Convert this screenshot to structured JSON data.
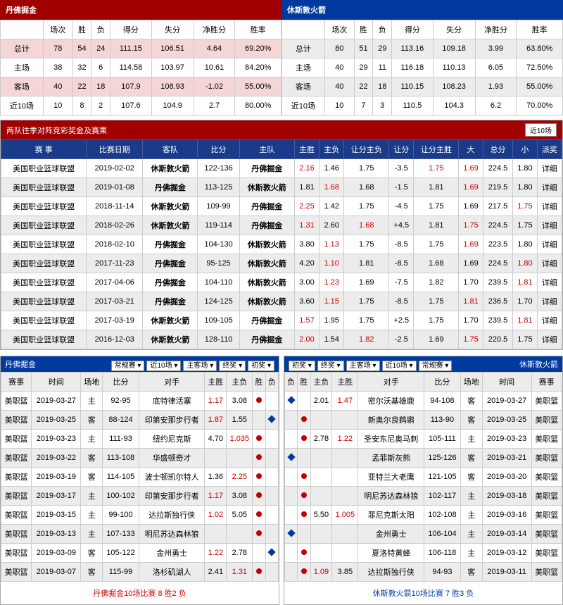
{
  "teamA": "丹佛掘金",
  "teamB": "休斯敦火箭",
  "statsHeaders": [
    "",
    "场次",
    "胜",
    "负",
    "得分",
    "失分",
    "净胜分",
    "胜率"
  ],
  "statsA": [
    {
      "label": "总计",
      "v": [
        "78",
        "54",
        "24",
        "111.15",
        "106.51",
        "4.64",
        "69.20%"
      ],
      "cls": "row-pink"
    },
    {
      "label": "主场",
      "v": [
        "38",
        "32",
        "6",
        "114.58",
        "103.97",
        "10.61",
        "84.20%"
      ],
      "cls": ""
    },
    {
      "label": "客场",
      "v": [
        "40",
        "22",
        "18",
        "107.9",
        "108.93",
        "-1.02",
        "55.00%"
      ],
      "cls": "row-pink"
    },
    {
      "label": "近10场",
      "v": [
        "10",
        "8",
        "2",
        "107.6",
        "104.9",
        "2.7",
        "80.00%"
      ],
      "cls": ""
    }
  ],
  "statsB": [
    {
      "label": "总计",
      "v": [
        "80",
        "51",
        "29",
        "113.16",
        "109.18",
        "3.99",
        "63.80%"
      ],
      "cls": "row-gray"
    },
    {
      "label": "主场",
      "v": [
        "40",
        "29",
        "11",
        "116.18",
        "110.13",
        "6.05",
        "72.50%"
      ],
      "cls": ""
    },
    {
      "label": "客场",
      "v": [
        "40",
        "22",
        "18",
        "110.15",
        "108.23",
        "1.93",
        "55.00%"
      ],
      "cls": "row-gray"
    },
    {
      "label": "近10场",
      "v": [
        "10",
        "7",
        "3",
        "110.5",
        "104.3",
        "6.2",
        "70.00%"
      ],
      "cls": ""
    }
  ],
  "h2hTitle": "两队往季对阵竞彩奖金及赛果",
  "h2hBtn": "近10场",
  "h2hHeaders": [
    "赛 事",
    "比赛日期",
    "客队",
    "比分",
    "主队",
    "主胜",
    "主负",
    "让分主负",
    "让分",
    "让分主胜",
    "大",
    "总分",
    "小",
    "派奖"
  ],
  "h2h": [
    {
      "c": [
        "美国职业篮球联盟",
        "2019-02-02",
        "休斯敦火箭",
        "122-136",
        "丹佛掘金",
        "2.16",
        "1.46",
        "1.75",
        "-3.5",
        "1.75",
        "1.69",
        "224.5",
        "1.80",
        "详细"
      ],
      "r": [
        5,
        9,
        10
      ]
    },
    {
      "c": [
        "美国职业篮球联盟",
        "2019-01-08",
        "丹佛掘金",
        "113-125",
        "休斯敦火箭",
        "1.81",
        "1.68",
        "1.68",
        "-1.5",
        "1.81",
        "1.69",
        "219.5",
        "1.80",
        "详细"
      ],
      "r": [
        6,
        10
      ],
      "alt": 1
    },
    {
      "c": [
        "美国职业篮球联盟",
        "2018-11-14",
        "休斯敦火箭",
        "109-99",
        "丹佛掘金",
        "2.25",
        "1.42",
        "1.75",
        "-4.5",
        "1.75",
        "1.69",
        "217.5",
        "1.75",
        "详细"
      ],
      "r": [
        5,
        12
      ]
    },
    {
      "c": [
        "美国职业篮球联盟",
        "2018-02-26",
        "休斯敦火箭",
        "119-114",
        "丹佛掘金",
        "1.31",
        "2.60",
        "1.68",
        "+4.5",
        "1.81",
        "1.75",
        "224.5",
        "1.75",
        "详细"
      ],
      "r": [
        5,
        7,
        10
      ],
      "alt": 1
    },
    {
      "c": [
        "美国职业篮球联盟",
        "2018-02-10",
        "丹佛掘金",
        "104-130",
        "休斯敦火箭",
        "3.80",
        "1.13",
        "1.75",
        "-8.5",
        "1.75",
        "1.69",
        "223.5",
        "1.80",
        "详细"
      ],
      "r": [
        6,
        10
      ]
    },
    {
      "c": [
        "美国职业篮球联盟",
        "2017-11-23",
        "丹佛掘金",
        "95-125",
        "休斯敦火箭",
        "4.20",
        "1.10",
        "1.81",
        "-8.5",
        "1.68",
        "1.69",
        "224.5",
        "1.80",
        "详细"
      ],
      "r": [
        6,
        12
      ],
      "alt": 1
    },
    {
      "c": [
        "美国职业篮球联盟",
        "2017-04-06",
        "丹佛掘金",
        "104-110",
        "休斯敦火箭",
        "3.00",
        "1.23",
        "1.69",
        "-7.5",
        "1.82",
        "1.70",
        "239.5",
        "1.81",
        "详细"
      ],
      "r": [
        6,
        12
      ]
    },
    {
      "c": [
        "美国职业篮球联盟",
        "2017-03-21",
        "丹佛掘金",
        "124-125",
        "休斯敦火箭",
        "3.60",
        "1.15",
        "1.75",
        "-8.5",
        "1.75",
        "1.81",
        "236.5",
        "1.70",
        "详细"
      ],
      "r": [
        6,
        10
      ],
      "alt": 1
    },
    {
      "c": [
        "美国职业篮球联盟",
        "2017-03-19",
        "休斯敦火箭",
        "109-105",
        "丹佛掘金",
        "1.57",
        "1.95",
        "1.75",
        "+2.5",
        "1.75",
        "1.70",
        "239.5",
        "1.81",
        "详细"
      ],
      "r": [
        5,
        12
      ]
    },
    {
      "c": [
        "美国职业篮球联盟",
        "2016-12-03",
        "休斯敦火箭",
        "128-110",
        "丹佛掘金",
        "2.00",
        "1.54",
        "1.82",
        "-2.5",
        "1.69",
        "1.75",
        "220.5",
        "1.75",
        "详细"
      ],
      "r": [
        5,
        7,
        10
      ],
      "alt": 1
    }
  ],
  "recentHeadersA": [
    "赛事",
    "时间",
    "场地",
    "比分",
    "对手",
    "主胜",
    "主负",
    "胜",
    "负"
  ],
  "recentHeadersB": [
    "负",
    "胜",
    "主负",
    "主胜",
    "对手",
    "比分",
    "场地",
    "时间",
    "赛事"
  ],
  "selLabels": [
    "常规赛",
    "近10场",
    "主客场",
    "终奖",
    "初奖"
  ],
  "recentA": [
    {
      "c": [
        "美职篮",
        "2019-03-27",
        "主",
        "92-95",
        "底特律活塞",
        "1.17",
        "3.08"
      ],
      "r": [
        5
      ],
      "w": "r"
    },
    {
      "c": [
        "美职篮",
        "2019-03-25",
        "客",
        "88-124",
        "印第安那步行者",
        "1.87",
        "1.55"
      ],
      "r": [
        5
      ],
      "l": "db"
    },
    {
      "c": [
        "美职篮",
        "2019-03-23",
        "主",
        "111-93",
        "纽约尼克斯",
        "4.70",
        "1.035"
      ],
      "r": [
        6
      ],
      "w": "r"
    },
    {
      "c": [
        "美职篮",
        "2019-03-22",
        "客",
        "113-108",
        "华盛顿奇才",
        "",
        ""
      ],
      "r": [],
      "w": "r"
    },
    {
      "c": [
        "美职篮",
        "2019-03-19",
        "客",
        "114-105",
        "波士顿凯尔特人",
        "1.36",
        "2.25"
      ],
      "r": [
        6
      ],
      "w": "r"
    },
    {
      "c": [
        "美职篮",
        "2019-03-17",
        "主",
        "100-102",
        "印第安那步行者",
        "1.17",
        "3.08"
      ],
      "r": [
        5
      ],
      "w": "r"
    },
    {
      "c": [
        "美职篮",
        "2019-03-15",
        "主",
        "99-100",
        "达拉斯独行侠",
        "1.02",
        "5.05"
      ],
      "r": [
        5
      ],
      "w": "r"
    },
    {
      "c": [
        "美职篮",
        "2019-03-13",
        "主",
        "107-133",
        "明尼苏达森林狼",
        "",
        ""
      ],
      "r": [],
      "w": "r"
    },
    {
      "c": [
        "美职篮",
        "2019-03-09",
        "客",
        "105-122",
        "金州勇士",
        "1.22",
        "2.78"
      ],
      "r": [
        5
      ],
      "l": "db"
    },
    {
      "c": [
        "美职篮",
        "2019-03-07",
        "客",
        "115-99",
        "洛杉矶湖人",
        "2.41",
        "1.31"
      ],
      "r": [
        6
      ],
      "w": "r"
    }
  ],
  "recentB": [
    {
      "c": [
        "2.01",
        "1.47",
        "密尔沃基雄鹿",
        "94-108",
        "客",
        "2019-03-27",
        "美职篮"
      ],
      "r": [
        1
      ],
      "l": "db"
    },
    {
      "c": [
        "",
        "",
        "新奥尔良鹈鹕",
        "113-90",
        "客",
        "2019-03-25",
        "美职篮"
      ],
      "r": [],
      "w": "r"
    },
    {
      "c": [
        "2.78",
        "1.22",
        "圣安东尼奥马刺",
        "105-111",
        "主",
        "2019-03-23",
        "美职篮"
      ],
      "r": [
        1
      ],
      "w": "r"
    },
    {
      "c": [
        "",
        "",
        "孟菲斯灰熊",
        "125-126",
        "客",
        "2019-03-21",
        "美职篮"
      ],
      "r": [],
      "l": "db"
    },
    {
      "c": [
        "",
        "",
        "亚特兰大老鹰",
        "121-105",
        "客",
        "2019-03-20",
        "美职篮"
      ],
      "r": [],
      "w": "r"
    },
    {
      "c": [
        "",
        "",
        "明尼苏达森林狼",
        "102-117",
        "主",
        "2019-03-18",
        "美职篮"
      ],
      "r": [],
      "w": "r"
    },
    {
      "c": [
        "5.50",
        "1.005",
        "菲尼克斯太阳",
        "102-108",
        "主",
        "2019-03-16",
        "美职篮"
      ],
      "r": [
        1
      ],
      "w": "r"
    },
    {
      "c": [
        "",
        "",
        "金州勇士",
        "106-104",
        "主",
        "2019-03-14",
        "美职篮"
      ],
      "r": [],
      "l": "db"
    },
    {
      "c": [
        "",
        "",
        "夏洛特黄蜂",
        "106-118",
        "主",
        "2019-03-12",
        "美职篮"
      ],
      "r": [],
      "w": "r"
    },
    {
      "c": [
        "1.09",
        "3.85",
        "达拉斯独行侠",
        "94-93",
        "客",
        "2019-03-11",
        "美职篮"
      ],
      "r": [
        0
      ],
      "w": "r"
    }
  ],
  "footA": "丹佛掘金10场比赛 8 胜2 负",
  "footB": "休斯敦火箭10场比赛 7 胜3 负"
}
